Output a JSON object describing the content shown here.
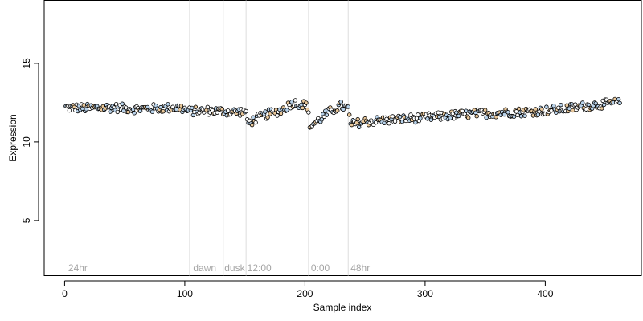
{
  "chart_data": {
    "type": "scatter",
    "title": "",
    "xlabel": "Sample index",
    "ylabel": "Expression",
    "xlim": [
      -17,
      480
    ],
    "ylim": [
      1.5,
      19
    ],
    "xticks": [
      0,
      100,
      200,
      300,
      400
    ],
    "yticks": [
      5,
      10,
      15
    ],
    "grid": false,
    "legend": "none",
    "colors": {
      "point_edge": "#000000",
      "fill_a": "#e8c79a",
      "fill_b": "#b8d2ea",
      "fill_c": "#ffffff",
      "section_line": "#dddddd",
      "section_label": "#a6a6a6"
    },
    "section_lines": [
      104,
      132,
      151,
      203,
      236
    ],
    "section_labels": [
      {
        "x": 3,
        "text": "24hr"
      },
      {
        "x": 107,
        "text": "dawn"
      },
      {
        "x": 133,
        "text": "dusk"
      },
      {
        "x": 152,
        "text": "12:00"
      },
      {
        "x": 205,
        "text": "0:00"
      },
      {
        "x": 238,
        "text": "48hr"
      }
    ],
    "trend": [
      [
        0,
        12.2
      ],
      [
        20,
        12.15
      ],
      [
        40,
        12.2
      ],
      [
        60,
        12.1
      ],
      [
        80,
        12.15
      ],
      [
        95,
        12.2
      ],
      [
        104,
        11.95
      ],
      [
        120,
        12.0
      ],
      [
        132,
        11.95
      ],
      [
        140,
        11.9
      ],
      [
        150,
        11.95
      ],
      [
        153,
        11.2
      ],
      [
        160,
        11.5
      ],
      [
        170,
        11.8
      ],
      [
        180,
        12.0
      ],
      [
        190,
        12.5
      ],
      [
        198,
        12.4
      ],
      [
        202,
        12.3
      ],
      [
        204,
        11.0
      ],
      [
        210,
        11.3
      ],
      [
        220,
        11.9
      ],
      [
        230,
        12.3
      ],
      [
        236,
        12.1
      ],
      [
        238,
        11.1
      ],
      [
        250,
        11.3
      ],
      [
        270,
        11.4
      ],
      [
        290,
        11.5
      ],
      [
        310,
        11.6
      ],
      [
        330,
        11.75
      ],
      [
        360,
        11.85
      ],
      [
        380,
        11.9
      ],
      [
        400,
        12.0
      ],
      [
        420,
        12.15
      ],
      [
        440,
        12.35
      ],
      [
        460,
        12.5
      ]
    ],
    "n_points": 462
  }
}
